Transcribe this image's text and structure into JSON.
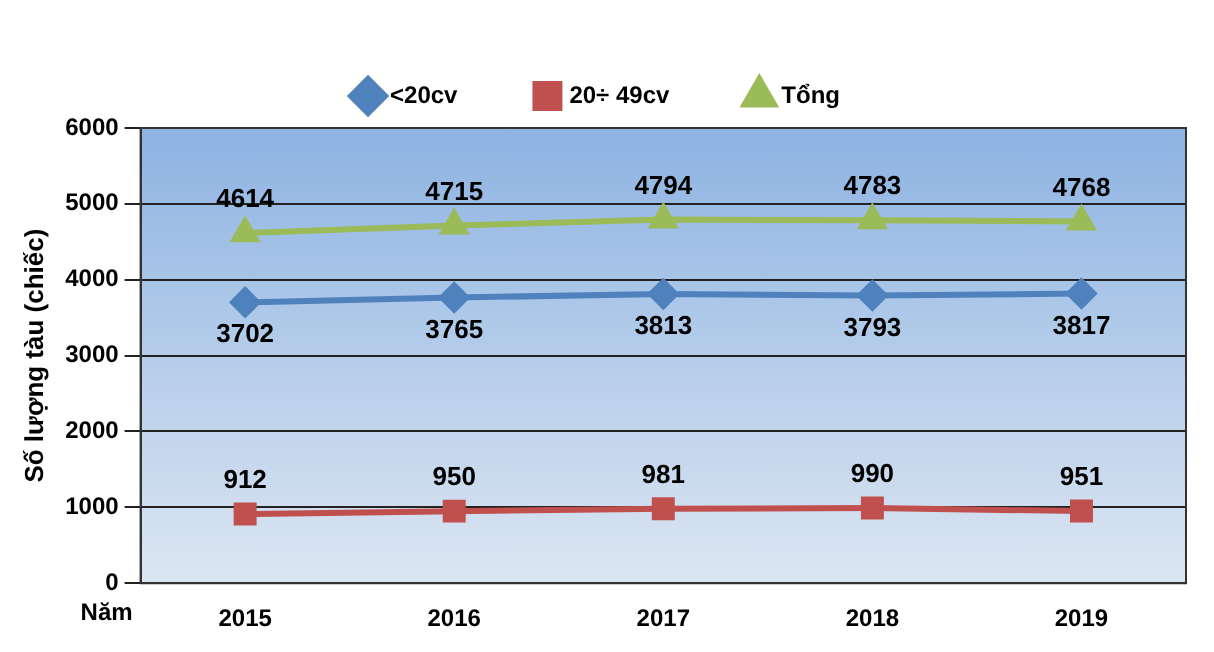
{
  "chart_data": {
    "type": "line",
    "xlabel": "Năm",
    "ylabel": "Số lượng tàu (chiếc)",
    "categories": [
      "2015",
      "2016",
      "2017",
      "2018",
      "2019"
    ],
    "series": [
      {
        "name": "<20cv",
        "color": "#4f81bd",
        "marker": "diamond",
        "values": [
          3702,
          3765,
          3813,
          3793,
          3817
        ]
      },
      {
        "name": "20÷ 49cv",
        "color": "#c0504d",
        "marker": "square",
        "values": [
          912,
          950,
          981,
          990,
          951
        ]
      },
      {
        "name": "Tổng",
        "color": "#9bbb59",
        "marker": "triangle",
        "values": [
          4614,
          4715,
          4794,
          4783,
          4768
        ]
      }
    ],
    "ylim": [
      0,
      6000
    ],
    "yticks": [
      0,
      1000,
      2000,
      3000,
      4000,
      5000,
      6000
    ],
    "grid": "y",
    "legend": "top",
    "data_labels": true
  }
}
